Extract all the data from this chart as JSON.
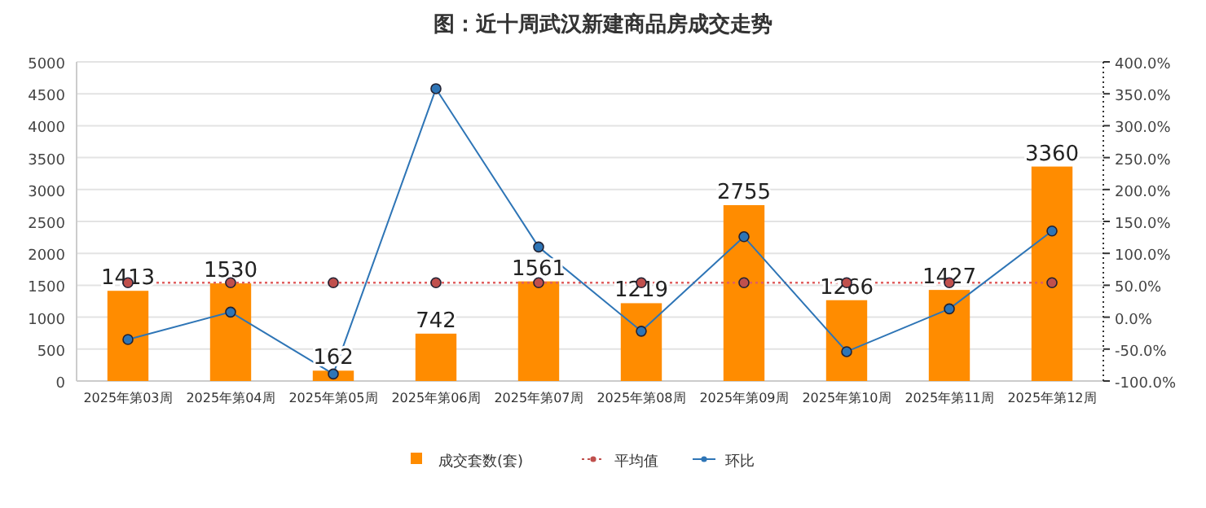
{
  "chart_data": {
    "type": "bar",
    "title": "图：近十周武汉新建商品房成交走势",
    "categories": [
      "2025年第03周",
      "2025年第04周",
      "2025年第05周",
      "2025年第06周",
      "2025年第07周",
      "2025年第08周",
      "2025年第09周",
      "2025年第10周",
      "2025年第11周",
      "2025年第12周"
    ],
    "series": [
      {
        "name": "成交套数(套)",
        "color": "#ff8c00",
        "values": [
          1413,
          1530,
          162,
          742,
          1561,
          1219,
          2755,
          1266,
          1427,
          3360
        ],
        "value_labels": [
          "1413",
          "1530",
          "162",
          "742",
          "1561",
          "1219",
          "2755",
          "1266",
          "1427",
          "3360"
        ]
      },
      {
        "name": "平均值",
        "type": "line",
        "color": "#c0504d",
        "line_style": "dotted",
        "marker": "circle",
        "values": [
          1540,
          1540,
          1540,
          1540,
          1540,
          1540,
          1540,
          1540,
          1540,
          1540
        ]
      },
      {
        "name": "环比",
        "type": "line",
        "axis": "y2",
        "color": "#2e75b6",
        "line_style": "solid",
        "marker": "circle",
        "values": [
          -35,
          8,
          -89,
          358,
          110,
          -22,
          126,
          -54,
          13,
          135
        ]
      }
    ],
    "ylim": [
      0,
      5000
    ],
    "yticks": [
      0,
      500,
      1000,
      1500,
      2000,
      2500,
      3000,
      3500,
      4000,
      4500,
      5000
    ],
    "y2lim": [
      -100,
      400
    ],
    "y2ticks": [
      {
        "value": -100,
        "label": "-100.0%"
      },
      {
        "value": -50,
        "label": "-50.0%"
      },
      {
        "value": 0,
        "label": "0.0%"
      },
      {
        "value": 50,
        "label": "50.0%"
      },
      {
        "value": 100,
        "label": "100.0%"
      },
      {
        "value": 150,
        "label": "150.0%"
      },
      {
        "value": 200,
        "label": "200.0%"
      },
      {
        "value": 250,
        "label": "250.0%"
      },
      {
        "value": 300,
        "label": "300.0%"
      },
      {
        "value": 350,
        "label": "350.0%"
      },
      {
        "value": 400,
        "label": "400.0%"
      }
    ],
    "grid": "y",
    "legend": "bottom"
  }
}
